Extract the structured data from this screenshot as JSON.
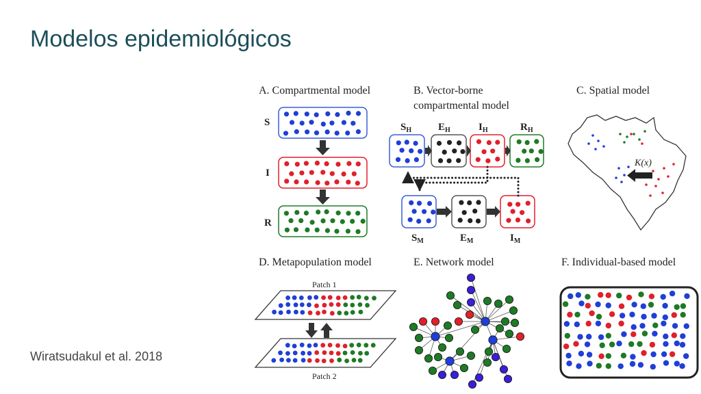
{
  "slide": {
    "title": "Modelos epidemiológicos",
    "citation": "Wiratsudakul et al. 2018"
  },
  "colors": {
    "title": "#1d4e5a",
    "susceptible": "#1f3fd6",
    "infected": "#e0202a",
    "recovered": "#1e7a25",
    "exposed": "#222222",
    "node_purple": "#3a1fd6"
  },
  "figure": {
    "panel_a": {
      "title": "A. Compartmental model",
      "compartments": [
        {
          "label": "S",
          "color": "blue"
        },
        {
          "label": "I",
          "color": "red"
        },
        {
          "label": "R",
          "color": "green"
        }
      ]
    },
    "panel_b": {
      "title_line1": "B. Vector-borne",
      "title_line2": "compartmental model",
      "host": [
        {
          "label": "S",
          "sub": "H"
        },
        {
          "label": "E",
          "sub": "H"
        },
        {
          "label": "I",
          "sub": "H"
        },
        {
          "label": "R",
          "sub": "H"
        }
      ],
      "vector": [
        {
          "label": "S",
          "sub": "M"
        },
        {
          "label": "E",
          "sub": "M"
        },
        {
          "label": "I",
          "sub": "M"
        }
      ]
    },
    "panel_c": {
      "title": "C. Spatial model",
      "kernel_label": "K(x)"
    },
    "panel_d": {
      "title": "D. Metapopulation model",
      "patch_1": "Patch 1",
      "patch_2": "Patch 2"
    },
    "panel_e": {
      "title": "E. Network model"
    },
    "panel_f": {
      "title": "F. Individual-based model"
    }
  }
}
